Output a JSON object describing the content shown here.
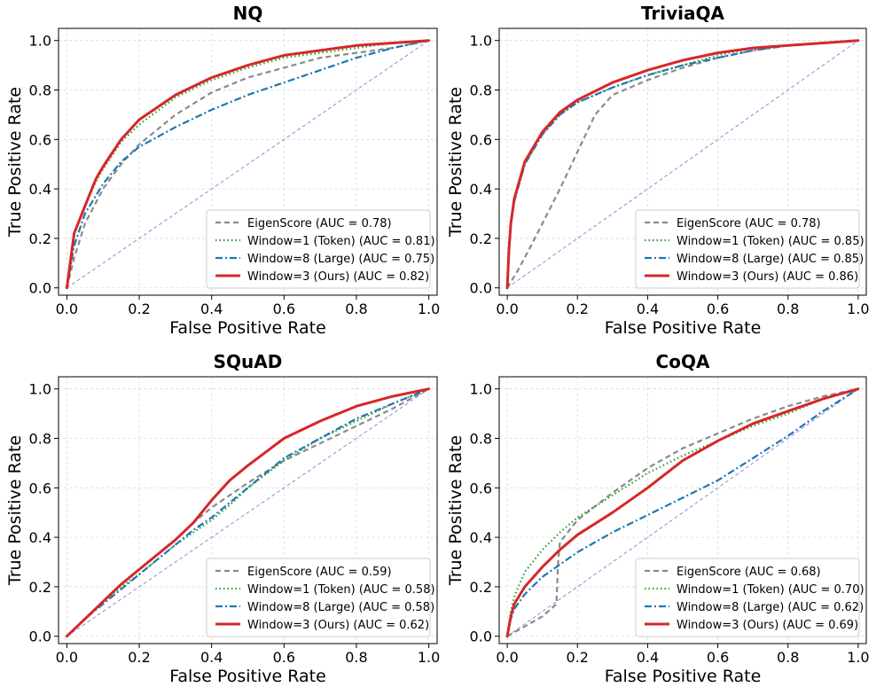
{
  "figure": {
    "xlabel": "False Positive Rate",
    "ylabel": "True Positive Rate"
  },
  "styles": {
    "EigenScore": {
      "color": "#8a8a8a",
      "dash": "6 4",
      "width": 2.2
    },
    "Window=1 (Token)": {
      "color": "#2ca02c",
      "dash": "1.5 3",
      "width": 2.2
    },
    "Window=8 (Large)": {
      "color": "#1f77b4",
      "dash": "8 3 2 3",
      "width": 2.2
    },
    "Window=3 (Ours)": {
      "color": "#d62728",
      "dash": "",
      "width": 3
    }
  },
  "chart_data": [
    {
      "type": "line",
      "title": "NQ",
      "xlabel": "False Positive Rate",
      "ylabel": "True Positive Rate",
      "xlim": [
        0,
        1
      ],
      "ylim": [
        0,
        1
      ],
      "ticks": [
        "0.0",
        "0.2",
        "0.4",
        "0.6",
        "0.8",
        "1.0"
      ],
      "legend_position": "lower-right",
      "series": [
        {
          "name": "EigenScore",
          "label": "EigenScore (AUC = 0.78)",
          "x": [
            0,
            0.02,
            0.05,
            0.1,
            0.15,
            0.2,
            0.3,
            0.4,
            0.5,
            0.6,
            0.7,
            0.8,
            0.9,
            1.0
          ],
          "y": [
            0,
            0.12,
            0.26,
            0.4,
            0.5,
            0.58,
            0.7,
            0.79,
            0.85,
            0.89,
            0.93,
            0.95,
            0.97,
            1.0
          ]
        },
        {
          "name": "Window=1 (Token)",
          "label": "Window=1 (Token) (AUC = 0.81)",
          "x": [
            0,
            0.02,
            0.05,
            0.08,
            0.1,
            0.15,
            0.2,
            0.3,
            0.4,
            0.5,
            0.6,
            0.7,
            0.8,
            0.9,
            1.0
          ],
          "y": [
            0,
            0.22,
            0.33,
            0.43,
            0.48,
            0.59,
            0.66,
            0.77,
            0.84,
            0.89,
            0.93,
            0.95,
            0.97,
            0.99,
            1.0
          ]
        },
        {
          "name": "Window=8 (Large)",
          "label": "Window=8 (Large) (AUC = 0.75)",
          "x": [
            0,
            0.02,
            0.05,
            0.1,
            0.15,
            0.2,
            0.3,
            0.4,
            0.5,
            0.6,
            0.7,
            0.8,
            0.9,
            1.0
          ],
          "y": [
            0,
            0.17,
            0.3,
            0.42,
            0.51,
            0.57,
            0.65,
            0.72,
            0.78,
            0.83,
            0.88,
            0.93,
            0.97,
            1.0
          ]
        },
        {
          "name": "Window=3 (Ours)",
          "label": "Window=3 (Ours) (AUC = 0.82)",
          "x": [
            0,
            0.02,
            0.05,
            0.08,
            0.1,
            0.15,
            0.2,
            0.3,
            0.4,
            0.5,
            0.6,
            0.7,
            0.8,
            0.9,
            1.0
          ],
          "y": [
            0,
            0.22,
            0.33,
            0.44,
            0.49,
            0.6,
            0.68,
            0.78,
            0.85,
            0.9,
            0.94,
            0.96,
            0.98,
            0.99,
            1.0
          ]
        }
      ]
    },
    {
      "type": "line",
      "title": "TriviaQA",
      "xlabel": "False Positive Rate",
      "ylabel": "True Positive Rate",
      "xlim": [
        0,
        1
      ],
      "ylim": [
        0,
        1
      ],
      "ticks": [
        "0.0",
        "0.2",
        "0.4",
        "0.6",
        "0.8",
        "1.0"
      ],
      "legend_position": "lower-right",
      "series": [
        {
          "name": "EigenScore",
          "label": "EigenScore (AUC = 0.78)",
          "x": [
            0,
            0.03,
            0.06,
            0.1,
            0.15,
            0.2,
            0.25,
            0.3,
            0.4,
            0.5,
            0.6,
            0.7,
            0.8,
            0.9,
            1.0
          ],
          "y": [
            0,
            0.07,
            0.15,
            0.26,
            0.4,
            0.55,
            0.7,
            0.78,
            0.84,
            0.89,
            0.93,
            0.96,
            0.98,
            0.99,
            1.0
          ]
        },
        {
          "name": "Window=1 (Token)",
          "label": "Window=1 (Token) (AUC = 0.85)",
          "x": [
            0,
            0.005,
            0.01,
            0.02,
            0.05,
            0.1,
            0.15,
            0.2,
            0.3,
            0.4,
            0.5,
            0.6,
            0.7,
            0.8,
            0.9,
            1.0
          ],
          "y": [
            0,
            0.15,
            0.25,
            0.35,
            0.5,
            0.62,
            0.7,
            0.75,
            0.81,
            0.86,
            0.9,
            0.94,
            0.97,
            0.98,
            0.99,
            1.0
          ]
        },
        {
          "name": "Window=8 (Large)",
          "label": "Window=8 (Large) (AUC = 0.85)",
          "x": [
            0,
            0.005,
            0.01,
            0.02,
            0.05,
            0.1,
            0.15,
            0.2,
            0.3,
            0.4,
            0.5,
            0.6,
            0.7,
            0.8,
            0.9,
            1.0
          ],
          "y": [
            0,
            0.15,
            0.25,
            0.35,
            0.5,
            0.62,
            0.7,
            0.75,
            0.81,
            0.86,
            0.9,
            0.93,
            0.96,
            0.98,
            0.99,
            1.0
          ]
        },
        {
          "name": "Window=3 (Ours)",
          "label": "Window=3 (Ours) (AUC = 0.86)",
          "x": [
            0,
            0.005,
            0.01,
            0.02,
            0.05,
            0.1,
            0.15,
            0.2,
            0.3,
            0.4,
            0.5,
            0.6,
            0.7,
            0.8,
            0.9,
            1.0
          ],
          "y": [
            0,
            0.16,
            0.26,
            0.36,
            0.51,
            0.63,
            0.71,
            0.76,
            0.83,
            0.88,
            0.92,
            0.95,
            0.97,
            0.98,
            0.99,
            1.0
          ]
        }
      ]
    },
    {
      "type": "line",
      "title": "SQuAD",
      "xlabel": "False Positive Rate",
      "ylabel": "True Positive Rate",
      "xlim": [
        0,
        1
      ],
      "ylim": [
        0,
        1
      ],
      "ticks": [
        "0.0",
        "0.2",
        "0.4",
        "0.6",
        "0.8",
        "1.0"
      ],
      "legend_position": "lower-right",
      "series": [
        {
          "name": "EigenScore",
          "label": "EigenScore (AUC = 0.59)",
          "x": [
            0,
            0.05,
            0.1,
            0.15,
            0.2,
            0.25,
            0.3,
            0.35,
            0.4,
            0.45,
            0.5,
            0.6,
            0.7,
            0.8,
            0.9,
            1.0
          ],
          "y": [
            0,
            0.07,
            0.14,
            0.21,
            0.27,
            0.33,
            0.39,
            0.46,
            0.52,
            0.57,
            0.62,
            0.71,
            0.78,
            0.85,
            0.92,
            1.0
          ]
        },
        {
          "name": "Window=1 (Token)",
          "label": "Window=1 (Token) (AUC = 0.58)",
          "x": [
            0,
            0.05,
            0.1,
            0.15,
            0.2,
            0.25,
            0.3,
            0.35,
            0.4,
            0.45,
            0.5,
            0.6,
            0.7,
            0.8,
            0.9,
            1.0
          ],
          "y": [
            0,
            0.07,
            0.14,
            0.2,
            0.25,
            0.31,
            0.37,
            0.42,
            0.47,
            0.53,
            0.6,
            0.71,
            0.8,
            0.87,
            0.94,
            1.0
          ]
        },
        {
          "name": "Window=8 (Large)",
          "label": "Window=8 (Large) (AUC = 0.58)",
          "x": [
            0,
            0.05,
            0.1,
            0.15,
            0.2,
            0.25,
            0.3,
            0.35,
            0.4,
            0.45,
            0.5,
            0.6,
            0.7,
            0.8,
            0.9,
            1.0
          ],
          "y": [
            0,
            0.07,
            0.13,
            0.19,
            0.25,
            0.31,
            0.37,
            0.43,
            0.48,
            0.54,
            0.6,
            0.72,
            0.8,
            0.88,
            0.94,
            1.0
          ]
        },
        {
          "name": "Window=3 (Ours)",
          "label": "Window=3 (Ours) (AUC = 0.62)",
          "x": [
            0,
            0.05,
            0.1,
            0.15,
            0.2,
            0.25,
            0.3,
            0.35,
            0.4,
            0.45,
            0.5,
            0.6,
            0.7,
            0.8,
            0.9,
            1.0
          ],
          "y": [
            0,
            0.07,
            0.14,
            0.21,
            0.27,
            0.33,
            0.39,
            0.46,
            0.55,
            0.63,
            0.69,
            0.8,
            0.87,
            0.93,
            0.97,
            1.0
          ]
        }
      ]
    },
    {
      "type": "line",
      "title": "CoQA",
      "xlabel": "False Positive Rate",
      "ylabel": "True Positive Rate",
      "xlim": [
        0,
        1
      ],
      "ylim": [
        0,
        1
      ],
      "ticks": [
        "0.0",
        "0.2",
        "0.4",
        "0.6",
        "0.8",
        "1.0"
      ],
      "legend_position": "lower-right",
      "series": [
        {
          "name": "EigenScore",
          "label": "EigenScore (AUC = 0.68)",
          "x": [
            0,
            0.05,
            0.1,
            0.14,
            0.145,
            0.15,
            0.2,
            0.3,
            0.4,
            0.5,
            0.6,
            0.7,
            0.8,
            0.9,
            1.0
          ],
          "y": [
            0,
            0.04,
            0.08,
            0.13,
            0.3,
            0.38,
            0.47,
            0.58,
            0.68,
            0.76,
            0.82,
            0.88,
            0.93,
            0.97,
            1.0
          ]
        },
        {
          "name": "Window=1 (Token)",
          "label": "Window=1 (Token) (AUC = 0.70)",
          "x": [
            0,
            0.01,
            0.02,
            0.05,
            0.1,
            0.15,
            0.2,
            0.3,
            0.4,
            0.5,
            0.6,
            0.7,
            0.8,
            0.9,
            1.0
          ],
          "y": [
            0,
            0.1,
            0.16,
            0.26,
            0.35,
            0.42,
            0.48,
            0.57,
            0.66,
            0.73,
            0.79,
            0.85,
            0.9,
            0.96,
            1.0
          ]
        },
        {
          "name": "Window=8 (Large)",
          "label": "Window=8 (Large) (AUC = 0.62)",
          "x": [
            0,
            0.01,
            0.02,
            0.05,
            0.1,
            0.15,
            0.2,
            0.3,
            0.4,
            0.5,
            0.6,
            0.7,
            0.8,
            0.9,
            1.0
          ],
          "y": [
            0,
            0.07,
            0.11,
            0.17,
            0.24,
            0.29,
            0.34,
            0.42,
            0.49,
            0.56,
            0.63,
            0.72,
            0.81,
            0.91,
            1.0
          ]
        },
        {
          "name": "Window=3 (Ours)",
          "label": "Window=3 (Ours) (AUC = 0.69)",
          "x": [
            0,
            0.01,
            0.02,
            0.05,
            0.1,
            0.15,
            0.2,
            0.3,
            0.4,
            0.5,
            0.6,
            0.7,
            0.8,
            0.9,
            1.0
          ],
          "y": [
            0,
            0.08,
            0.13,
            0.2,
            0.28,
            0.35,
            0.41,
            0.5,
            0.6,
            0.71,
            0.79,
            0.86,
            0.91,
            0.96,
            1.0
          ]
        }
      ]
    }
  ]
}
